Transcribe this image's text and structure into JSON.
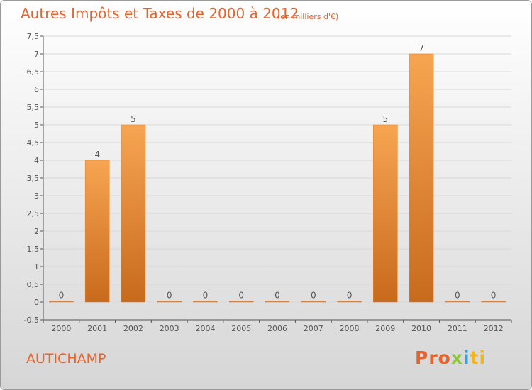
{
  "header": {
    "title": "Autres Impôts et Taxes de 2000 à 2012",
    "subtitle": "(en milliers d'€)"
  },
  "footer": {
    "place": "AUTICHAMP",
    "brand_parts": [
      "Pro",
      "x",
      "i",
      "ti"
    ]
  },
  "colors": {
    "accent": "#e8622c",
    "bar_top": "#f7a552",
    "bar_bottom": "#c86a1c",
    "grid": "#d8d8d8"
  },
  "chart_data": {
    "type": "bar",
    "title": "Autres Impôts et Taxes de 2000 à 2012",
    "subtitle": "(en milliers d'€)",
    "categories": [
      "2000",
      "2001",
      "2002",
      "2003",
      "2004",
      "2005",
      "2006",
      "2007",
      "2008",
      "2009",
      "2010",
      "2011",
      "2012"
    ],
    "values": [
      0,
      4,
      5,
      0,
      0,
      0,
      0,
      0,
      0,
      5,
      7,
      0,
      0
    ],
    "data_labels": [
      "0",
      "4",
      "5",
      "0",
      "0",
      "0",
      "0",
      "0",
      "0",
      "5",
      "7",
      "0",
      "0"
    ],
    "ylim": [
      -0.5,
      7.5
    ],
    "yticks": [
      -0.5,
      0,
      0.5,
      1,
      1.5,
      2,
      2.5,
      3,
      3.5,
      4,
      4.5,
      5,
      5.5,
      6,
      6.5,
      7,
      7.5
    ],
    "ytick_labels": [
      "-0,5",
      "0",
      "0,5",
      "1",
      "1,5",
      "2",
      "2,5",
      "3",
      "3,5",
      "4",
      "4,5",
      "5",
      "5,5",
      "6",
      "6,5",
      "7",
      "7,5"
    ],
    "xlabel": "",
    "ylabel": "",
    "grid": true
  }
}
